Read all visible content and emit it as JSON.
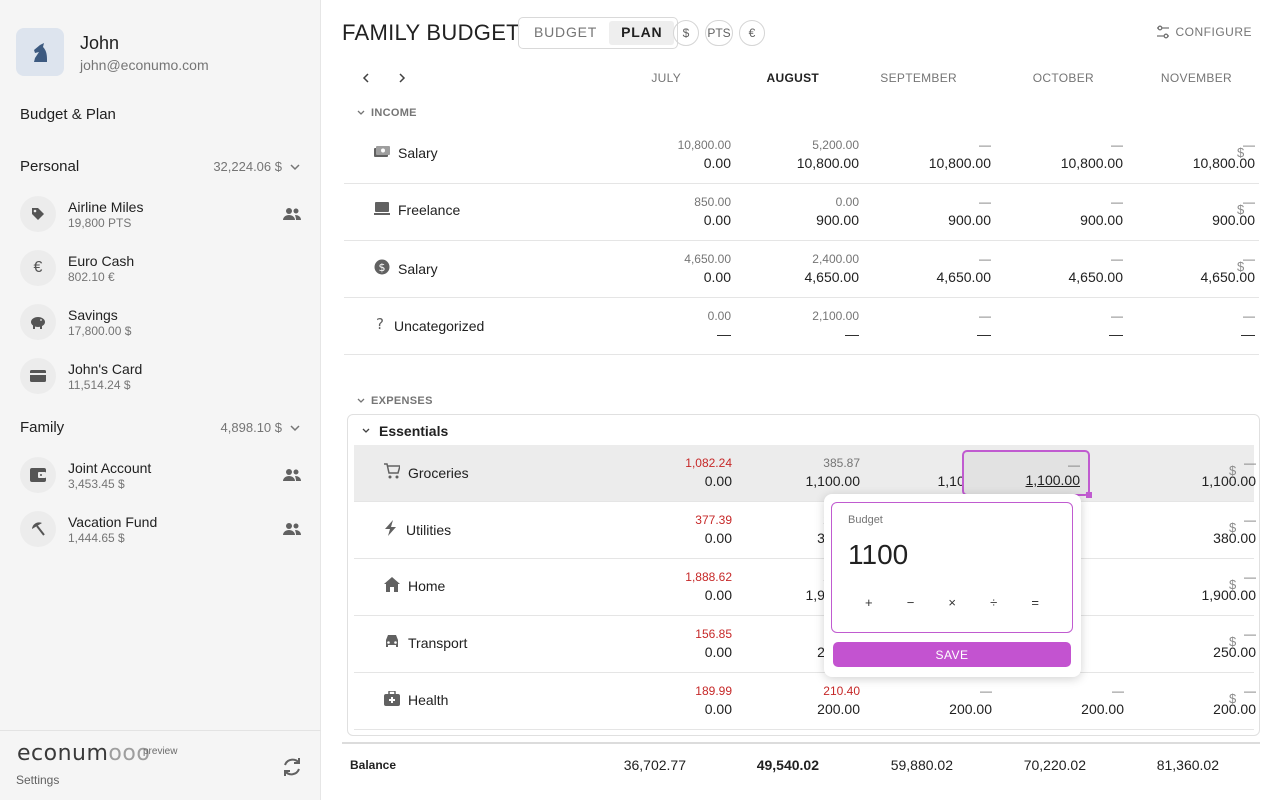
{
  "profile": {
    "name": "John",
    "email": "john@econumo.com"
  },
  "nav": {
    "budget_plan": "Budget & Plan"
  },
  "folders": [
    {
      "name": "Personal",
      "total": "32,224.06 $"
    },
    {
      "name": "Family",
      "total": "4,898.10 $"
    }
  ],
  "accounts": [
    {
      "name": "Airline Miles",
      "balance": "19,800 PTS",
      "icon": "tag-icon",
      "shared": true
    },
    {
      "name": "Euro Cash",
      "balance": "802.10 €",
      "icon": "euro-icon",
      "glyph": "€",
      "shared": false
    },
    {
      "name": "Savings",
      "balance": "17,800.00 $",
      "icon": "piggy-bank-icon",
      "shared": false
    },
    {
      "name": "John's Card",
      "balance": "11,514.24 $",
      "icon": "credit-card-icon",
      "shared": false
    },
    {
      "name": "Joint Account",
      "balance": "3,453.45 $",
      "icon": "wallet-icon",
      "shared": true
    },
    {
      "name": "Vacation Fund",
      "balance": "1,444.65 $",
      "icon": "beach-umbrella-icon",
      "shared": true
    }
  ],
  "footer": {
    "logo": "econum",
    "logo_loops": "ooo",
    "preview": "preview",
    "settings": "Settings"
  },
  "header": {
    "title": "FAMILY BUDGET",
    "mode_budget": "BUDGET",
    "mode_plan": "PLAN",
    "currencies": [
      "$",
      "PTS",
      "€"
    ],
    "configure": "CONFIGURE"
  },
  "months": [
    "JULY",
    "AUGUST",
    "SEPTEMBER",
    "OCTOBER",
    "NOVEMBER"
  ],
  "sections": {
    "income": "INCOME",
    "expenses": "EXPENSES"
  },
  "income": [
    {
      "label": "Salary",
      "icon": "money-icon",
      "cells": [
        [
          "10,800.00",
          "0.00"
        ],
        [
          "5,200.00",
          "10,800.00"
        ],
        [
          "—",
          "10,800.00"
        ],
        [
          "—",
          "10,800.00"
        ],
        [
          "—",
          "10,800.00"
        ]
      ],
      "currency": "$"
    },
    {
      "label": "Freelance",
      "icon": "laptop-icon",
      "cells": [
        [
          "850.00",
          "0.00"
        ],
        [
          "0.00",
          "900.00"
        ],
        [
          "—",
          "900.00"
        ],
        [
          "—",
          "900.00"
        ],
        [
          "—",
          "900.00"
        ]
      ],
      "currency": "$"
    },
    {
      "label": "Salary",
      "icon": "dollar-coin-icon",
      "cells": [
        [
          "4,650.00",
          "0.00"
        ],
        [
          "2,400.00",
          "4,650.00"
        ],
        [
          "—",
          "4,650.00"
        ],
        [
          "—",
          "4,650.00"
        ],
        [
          "—",
          "4,650.00"
        ]
      ],
      "currency": "$"
    },
    {
      "label": "Uncategorized",
      "icon": "question-icon",
      "cells": [
        [
          "0.00",
          "—"
        ],
        [
          "2,100.00",
          "—"
        ],
        [
          "—",
          "—"
        ],
        [
          "—",
          "—"
        ],
        [
          "—",
          "—"
        ]
      ],
      "currency": ""
    }
  ],
  "envelope": {
    "name": "Essentials"
  },
  "expenses": [
    {
      "label": "Groceries",
      "icon": "cart-icon",
      "cells": [
        [
          "1,082.24",
          "0.00"
        ],
        [
          "385.87",
          "1,100.00"
        ],
        [
          "—",
          "1,100.00"
        ],
        [
          "—",
          "1,100.00"
        ],
        [
          "—",
          "1,100.00"
        ]
      ],
      "red": [
        true,
        false
      ],
      "currency": "$"
    },
    {
      "label": "Utilities",
      "icon": "lightning-icon",
      "cells": [
        [
          "377.39",
          "0.00"
        ],
        [
          "236.40",
          "380.00"
        ],
        [
          "",
          ""
        ],
        [
          "",
          ""
        ],
        [
          "—",
          "380.00"
        ]
      ],
      "red": [
        true,
        false
      ],
      "currency": "$"
    },
    {
      "label": "Home",
      "icon": "home-icon",
      "cells": [
        [
          "1,888.62",
          "0.00"
        ],
        [
          "215.80",
          "1,900.00"
        ],
        [
          "",
          ""
        ],
        [
          "",
          ""
        ],
        [
          "—",
          "1,900.00"
        ]
      ],
      "red": [
        true,
        false
      ],
      "currency": "$"
    },
    {
      "label": "Transport",
      "icon": "car-icon",
      "cells": [
        [
          "156.85",
          "0.00"
        ],
        [
          "111.50",
          "250.00"
        ],
        [
          "",
          ""
        ],
        [
          "",
          ""
        ],
        [
          "—",
          "250.00"
        ]
      ],
      "red": [
        true,
        false
      ],
      "currency": "$"
    },
    {
      "label": "Health",
      "icon": "medical-bag-icon",
      "cells": [
        [
          "189.99",
          "0.00"
        ],
        [
          "210.40",
          "200.00"
        ],
        [
          "—",
          "200.00"
        ],
        [
          "—",
          "200.00"
        ],
        [
          "—",
          "200.00"
        ]
      ],
      "red": [
        true,
        true
      ],
      "currency": "$"
    }
  ],
  "editor": {
    "label": "Budget",
    "value": "1100",
    "ops": [
      "+",
      "−",
      "×",
      "÷",
      "="
    ],
    "save": "SAVE"
  },
  "balance": {
    "label": "Balance",
    "values": [
      "36,702.77",
      "49,540.02",
      "59,880.02",
      "70,220.02",
      "81,360.02"
    ]
  }
}
